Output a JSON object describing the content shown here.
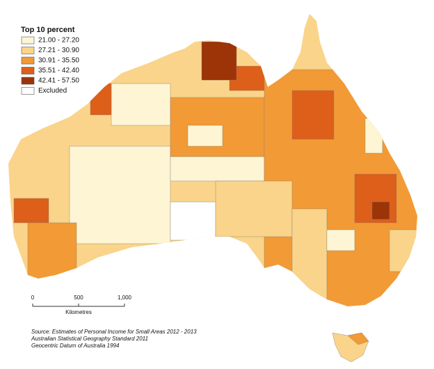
{
  "legend": {
    "title": "Top 10 percent",
    "items": [
      {
        "label": "21.00 - 27.20",
        "color": "#fdf5d3"
      },
      {
        "label": "27.21 - 30.90",
        "color": "#f9d48a"
      },
      {
        "label": "30.91 - 35.50",
        "color": "#f29a35"
      },
      {
        "label": "35.51 - 42.40",
        "color": "#dd5f1a"
      },
      {
        "label": "42.41 - 57.50",
        "color": "#9c3408"
      },
      {
        "label": "Excluded",
        "color": "#ffffff"
      }
    ]
  },
  "scale_bar": {
    "ticks": [
      0,
      500,
      {
        "value": 1000,
        "label": "1,000"
      }
    ],
    "unit": "Kilometres"
  },
  "source": [
    "Source: Estimates of Personal Income for Small Areas 2012 - 2013",
    "Australian Statistical Geography Standard 2011",
    "Geocentric Datum of Australia 1994"
  ]
}
